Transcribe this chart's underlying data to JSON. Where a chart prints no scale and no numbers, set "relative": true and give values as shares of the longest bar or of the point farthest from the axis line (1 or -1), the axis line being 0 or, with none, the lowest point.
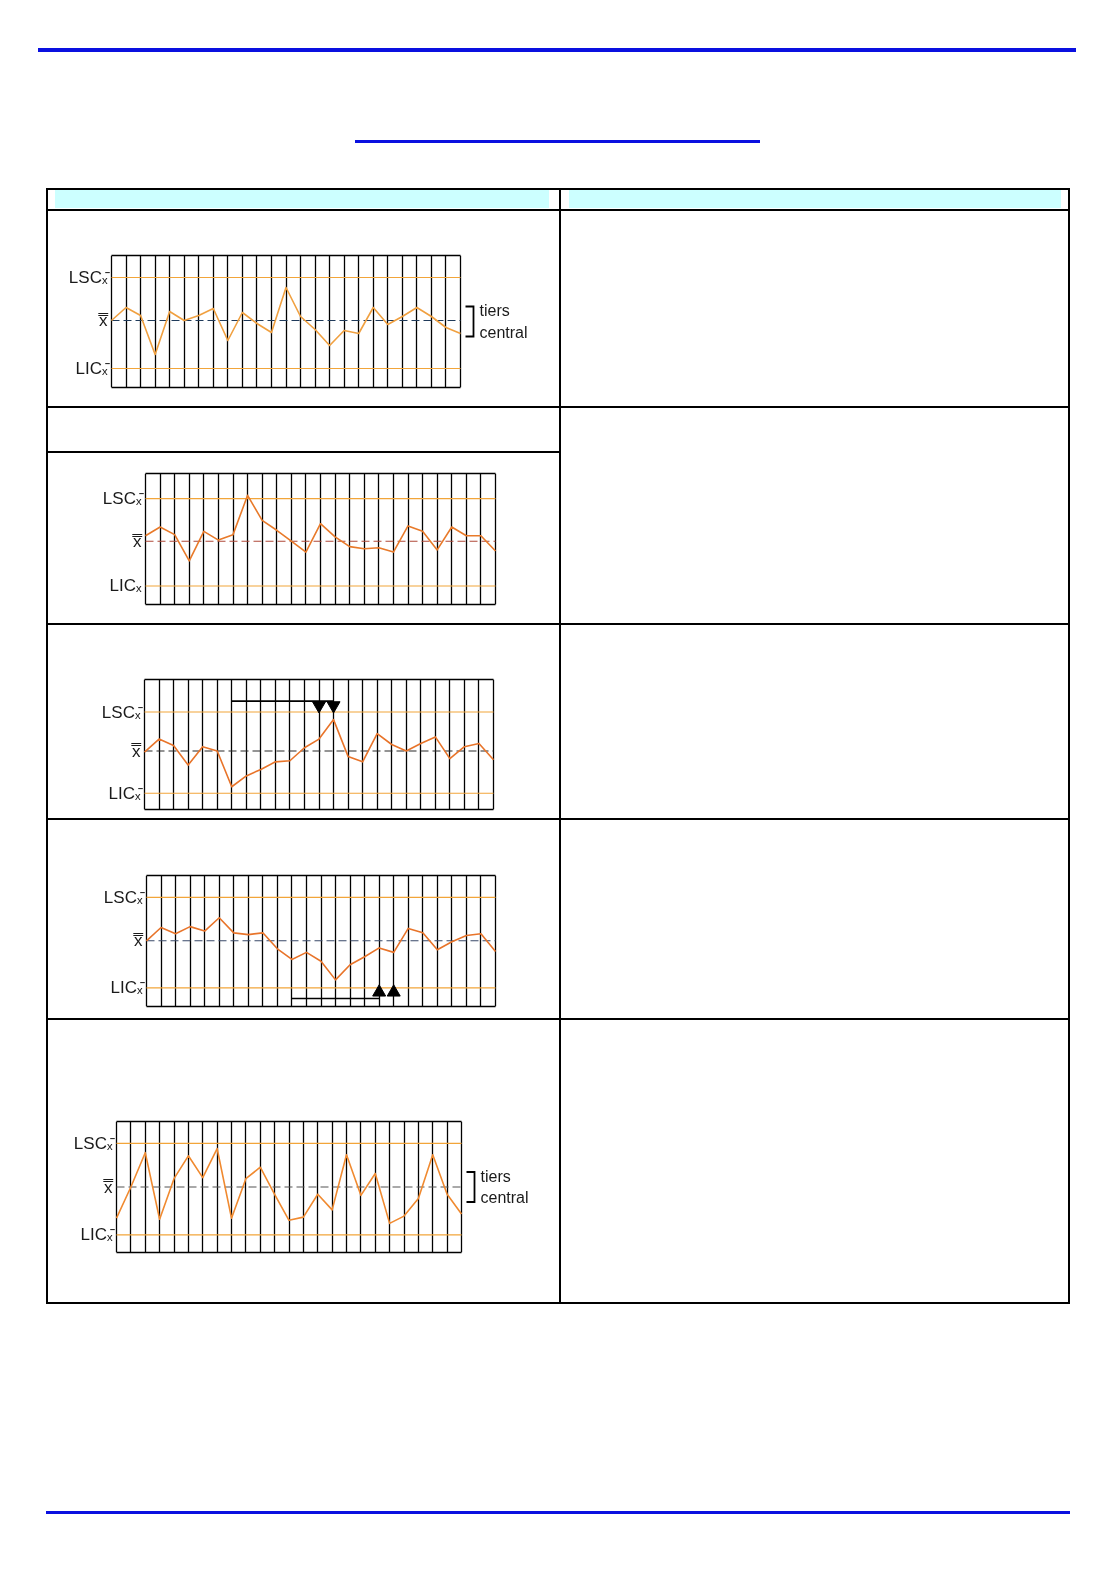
{
  "chart_data": [
    {
      "type": "line",
      "categories": [
        null,
        null,
        null,
        null,
        null,
        null,
        null,
        null,
        null,
        null,
        null,
        null,
        null,
        null,
        null,
        null,
        null,
        null,
        null,
        null,
        null,
        null,
        null,
        null,
        null
      ],
      "relative": true,
      "grid": "x",
      "series": [
        {
          "color": "#f0a040",
          "values": [
            0.67,
            0.8,
            0.72,
            0.33,
            0.76,
            0.67,
            0.72,
            0.79,
            0.47,
            0.75,
            0.64,
            0.55,
            1,
            0.71,
            0.58,
            0.42,
            0.57,
            0.54,
            0.8,
            0.63,
            0.71,
            0.8,
            0.71,
            0.6,
            0.54
          ]
        }
      ],
      "ref_lines": [
        {
          "axis": "y",
          "value": 1.1,
          "label": "LSCₓ̄",
          "color": "#f2a53a",
          "line_style": "solid"
        },
        {
          "axis": "y",
          "value": 0.67,
          "label": "x̿",
          "color": "#1f3a5a",
          "line_style": "dashed"
        },
        {
          "axis": "y",
          "value": 0.19,
          "label": "LICₓ̄",
          "color": "#f2a53a",
          "line_style": "solid"
        }
      ],
      "annotations": [
        "tiers central"
      ]
    },
    {
      "type": "line",
      "categories": [
        null,
        null,
        null,
        null,
        null,
        null,
        null,
        null,
        null,
        null,
        null,
        null,
        null,
        null,
        null,
        null,
        null,
        null,
        null,
        null,
        null,
        null,
        null,
        null,
        null
      ],
      "relative": true,
      "grid": "x",
      "series": [
        {
          "color": "#e87a2a",
          "values": [
            0.63,
            0.71,
            0.64,
            0.4,
            0.67,
            0.59,
            0.64,
            1,
            0.77,
            0.68,
            0.58,
            0.48,
            0.74,
            0.62,
            0.53,
            0.51,
            0.52,
            0.48,
            0.72,
            0.67,
            0.5,
            0.71,
            0.63,
            0.63,
            0.49
          ]
        }
      ],
      "ref_lines": [
        {
          "axis": "y",
          "value": 0.97,
          "label": "LSCₓ̄",
          "color": "#f2a53a",
          "line_style": "solid"
        },
        {
          "axis": "y",
          "value": 0.58,
          "label": "x̿",
          "color": "#b04a3a",
          "line_style": "dashed"
        },
        {
          "axis": "y",
          "value": 0.17,
          "label": "LICₓ",
          "color": "#f2a53a",
          "line_style": "solid"
        }
      ]
    },
    {
      "type": "line",
      "categories": [
        null,
        null,
        null,
        null,
        null,
        null,
        null,
        null,
        null,
        null,
        null,
        null,
        null,
        null,
        null,
        null,
        null,
        null,
        null,
        null,
        null,
        null,
        null,
        null,
        null
      ],
      "relative": true,
      "grid": "x",
      "series": [
        {
          "color": "#e8742a",
          "values": [
            0.53,
            0.65,
            0.59,
            0.41,
            0.58,
            0.54,
            0.21,
            0.31,
            0.37,
            0.44,
            0.45,
            0.57,
            0.65,
            0.83,
            0.49,
            0.44,
            0.7,
            0.6,
            0.54,
            0.61,
            0.67,
            0.47,
            0.58,
            0.61,
            0.46
          ]
        },
        {
          "type": "line",
          "color": "#000000",
          "values": [
            null,
            null,
            null,
            null,
            null,
            null,
            1,
            1,
            1,
            1,
            1,
            1,
            1,
            1,
            null,
            null,
            null,
            null,
            null,
            null,
            null,
            null,
            null,
            null,
            null
          ]
        },
        {
          "type": "scatter",
          "marker": "triangle",
          "color": "#000000",
          "values": [
            null,
            null,
            null,
            null,
            null,
            null,
            null,
            null,
            null,
            null,
            null,
            null,
            0.96,
            0.96,
            null,
            null,
            null,
            null,
            null,
            null,
            null,
            null,
            null,
            null,
            null
          ]
        }
      ],
      "ref_lines": [
        {
          "axis": "y",
          "value": 0.9,
          "label": "LSCₓ̄",
          "color": "#f2a53a",
          "line_style": "solid"
        },
        {
          "axis": "y",
          "value": 0.54,
          "label": "x̿",
          "color": "#2a2a2a",
          "line_style": "dashed"
        },
        {
          "axis": "y",
          "value": 0.15,
          "label": "LICₓ̄",
          "color": "#f2a53a",
          "line_style": "solid"
        }
      ]
    },
    {
      "type": "line",
      "categories": [
        null,
        null,
        null,
        null,
        null,
        null,
        null,
        null,
        null,
        null,
        null,
        null,
        null,
        null,
        null,
        null,
        null,
        null,
        null,
        null,
        null,
        null,
        null,
        null,
        null
      ],
      "relative": true,
      "grid": "x",
      "series": [
        {
          "color": "#e8742a",
          "values": [
            0.74,
            0.89,
            0.82,
            0.9,
            0.85,
            1,
            0.83,
            0.81,
            0.83,
            0.65,
            0.53,
            0.61,
            0.51,
            0.3,
            0.47,
            0.56,
            0.66,
            0.61,
            0.88,
            0.83,
            0.64,
            0.73,
            0.8,
            0.82,
            0.62
          ]
        },
        {
          "type": "line",
          "color": "#000000",
          "values": [
            null,
            null,
            null,
            null,
            null,
            null,
            null,
            null,
            null,
            null,
            0.09,
            0.09,
            0.09,
            0.09,
            0.09,
            0.09,
            0.09,
            null,
            null,
            null,
            null,
            null,
            null,
            null,
            null
          ]
        },
        {
          "type": "scatter",
          "marker": "triangle",
          "color": "#000000",
          "values": [
            null,
            null,
            null,
            null,
            null,
            null,
            null,
            null,
            null,
            null,
            null,
            null,
            null,
            null,
            null,
            null,
            0.16,
            0.16,
            null,
            null,
            null,
            null,
            null,
            null,
            null
          ]
        }
      ],
      "ref_lines": [
        {
          "axis": "y",
          "value": 1.23,
          "label": "LSCₓ̄",
          "color": "#f2a53a",
          "line_style": "solid"
        },
        {
          "axis": "y",
          "value": 0.74,
          "label": "x̿",
          "color": "#3a4a6a",
          "line_style": "dashed"
        },
        {
          "axis": "y",
          "value": 0.21,
          "label": "LICₓ̄",
          "color": "#f2a53a",
          "line_style": "solid"
        }
      ]
    },
    {
      "type": "line",
      "categories": [
        null,
        null,
        null,
        null,
        null,
        null,
        null,
        null,
        null,
        null,
        null,
        null,
        null,
        null,
        null,
        null,
        null,
        null,
        null,
        null,
        null,
        null,
        null,
        null,
        null
      ],
      "relative": true,
      "grid": "x",
      "series": [
        {
          "color": "#f08a30",
          "values": [
            0.33,
            0.63,
            0.96,
            0.32,
            0.71,
            0.93,
            0.72,
            1,
            0.33,
            0.71,
            0.82,
            0.56,
            0.31,
            0.34,
            0.56,
            0.41,
            0.94,
            0.55,
            0.76,
            0.28,
            0.35,
            0.52,
            0.94,
            0.56,
            0.37
          ]
        }
      ],
      "ref_lines": [
        {
          "axis": "y",
          "value": 1.05,
          "label": "LSCₓ̄",
          "color": "#f2a53a",
          "line_style": "solid"
        },
        {
          "axis": "y",
          "value": 0.63,
          "label": "x̿",
          "color": "#555555",
          "line_style": "dashed"
        },
        {
          "axis": "y",
          "value": 0.17,
          "label": "LICₓ̄",
          "color": "#f2a53a",
          "line_style": "solid"
        }
      ],
      "annotations": [
        "tiers central"
      ]
    }
  ]
}
